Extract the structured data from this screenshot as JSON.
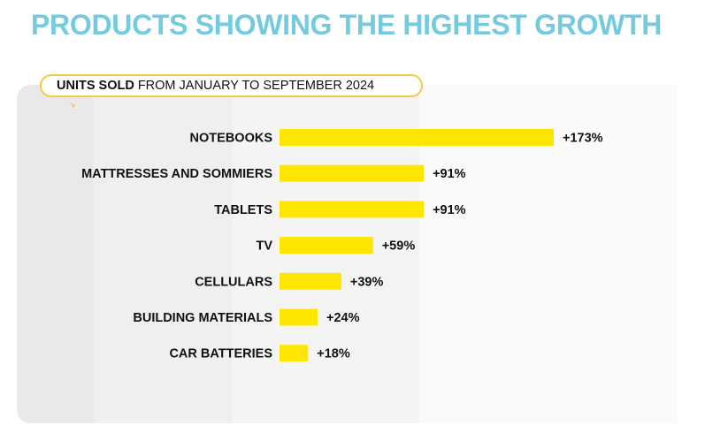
{
  "page": {
    "title": "PRODUCTS SHOWING THE HIGHEST GROWTH"
  },
  "subtitle": {
    "bold": "UNITS SOLD",
    "rest": "FROM JANUARY TO SEPTEMBER 2024",
    "arrow_icon": "↘"
  },
  "colors": {
    "title": "#74cbe0",
    "bar": "#ffe600",
    "pill_border": "#f7c948"
  },
  "chart_data": {
    "type": "bar",
    "orientation": "horizontal",
    "title": "PRODUCTS SHOWING THE HIGHEST GROWTH",
    "subtitle": "UNITS SOLD FROM JANUARY TO SEPTEMBER 2024",
    "xlabel": "",
    "ylabel": "",
    "categories": [
      "NOTEBOOKS",
      "MATTRESSES AND SOMMIERS",
      "TABLETS",
      "TV",
      "CELLULARS",
      "BUILDING MATERIALS",
      "CAR BATTERIES"
    ],
    "values": [
      173,
      91,
      91,
      59,
      39,
      24,
      18
    ],
    "value_labels": [
      "+173%",
      "+91%",
      "+91%",
      "+59%",
      "+39%",
      "+24%",
      "+18%"
    ],
    "unit": "%",
    "xlim": [
      0,
      173
    ],
    "grid": false,
    "legend": "none"
  }
}
